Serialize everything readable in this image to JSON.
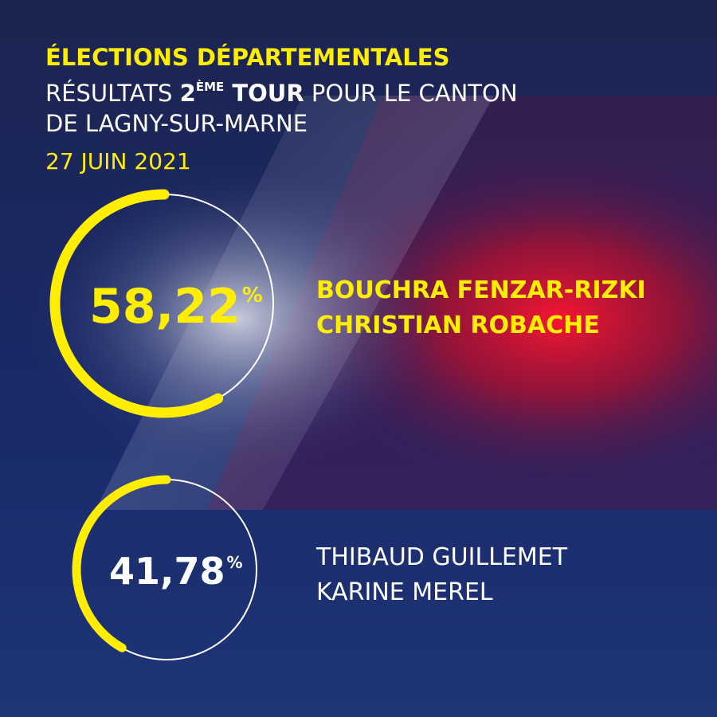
{
  "colors": {
    "accent": "#ffee00",
    "white": "#ffffff",
    "navy": "#1a2a6a",
    "red": "#d8102a"
  },
  "header": {
    "title": "ÉLECTIONS DÉPARTEMENTALES",
    "line1_pre": "RÉSULTATS ",
    "line1_round": "2",
    "line1_sup": "ÈME",
    "line1_tour": " TOUR",
    "line1_post": " POUR LE CANTON",
    "line2": "DE LAGNY-SUR-MARNE",
    "date": "27 JUIN 2021"
  },
  "results": [
    {
      "percent_value": 58.22,
      "percent_text": "58,22",
      "percent_symbol": "%",
      "names": [
        "BOUCHRA FENZAR-RIZKI",
        "CHRISTIAN ROBACHE"
      ],
      "winner": true
    },
    {
      "percent_value": 41.78,
      "percent_text": "41,78",
      "percent_symbol": "%",
      "names": [
        "THIBAUD GUILLEMET",
        "KARINE MEREL"
      ],
      "winner": false
    }
  ]
}
